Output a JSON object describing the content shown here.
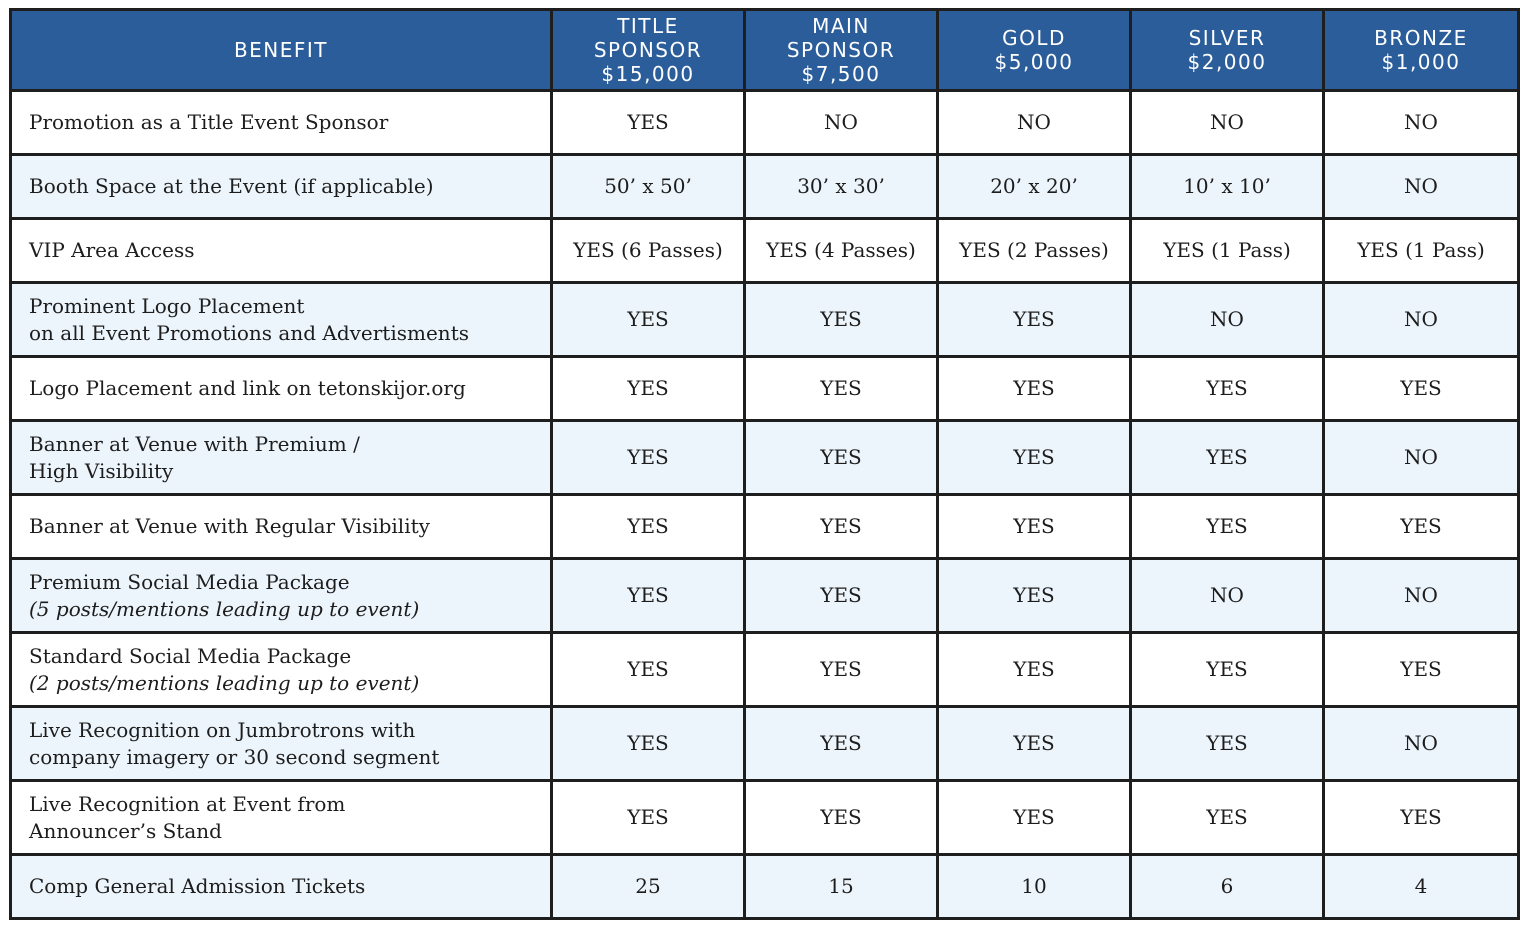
{
  "header": {
    "benefit_label": "BENEFIT",
    "tiers": [
      {
        "lines": [
          "TITLE",
          "SPONSOR",
          "$15,000"
        ]
      },
      {
        "lines": [
          "MAIN",
          "SPONSOR",
          "$7,500"
        ]
      },
      {
        "lines": [
          "GOLD",
          "$5,000"
        ]
      },
      {
        "lines": [
          "SILVER",
          "$2,000"
        ]
      },
      {
        "lines": [
          "BRONZE",
          "$1,000"
        ]
      }
    ]
  },
  "rows": [
    {
      "benefit": [
        "Promotion as a Title Event Sponsor"
      ],
      "values": [
        "YES",
        "NO",
        "NO",
        "NO",
        "NO"
      ]
    },
    {
      "benefit": [
        "Booth Space at the Event (if applicable)"
      ],
      "values": [
        "50’ x 50’",
        "30’ x 30’",
        "20’ x 20’",
        "10’ x 10’",
        "NO"
      ]
    },
    {
      "benefit": [
        "VIP Area Access"
      ],
      "values": [
        "YES (6 Passes)",
        "YES (4 Passes)",
        "YES (2 Passes)",
        "YES (1 Pass)",
        "YES (1 Pass)"
      ]
    },
    {
      "benefit": [
        "Prominent Logo Placement",
        "on all Event Promotions and Advertisments"
      ],
      "values": [
        "YES",
        "YES",
        "YES",
        "NO",
        "NO"
      ]
    },
    {
      "benefit": [
        "Logo Placement and link on tetonskijor.org"
      ],
      "values": [
        "YES",
        "YES",
        "YES",
        "YES",
        "YES"
      ]
    },
    {
      "benefit": [
        "Banner at Venue with Premium /",
        "High Visibility"
      ],
      "values": [
        "YES",
        "YES",
        "YES",
        "YES",
        "NO"
      ]
    },
    {
      "benefit": [
        "Banner at Venue with Regular Visibility"
      ],
      "values": [
        "YES",
        "YES",
        "YES",
        "YES",
        "YES"
      ]
    },
    {
      "benefit": [
        "Premium Social Media Package",
        "(5 posts/mentions leading up to event)"
      ],
      "values": [
        "YES",
        "YES",
        "YES",
        "NO",
        "NO"
      ]
    },
    {
      "benefit": [
        "Standard Social Media Package",
        "(2 posts/mentions leading up to event)"
      ],
      "values": [
        "YES",
        "YES",
        "YES",
        "YES",
        "YES"
      ]
    },
    {
      "benefit": [
        "Live Recognition on Jumbrotrons with",
        "company imagery or  30 second segment"
      ],
      "values": [
        "YES",
        "YES",
        "YES",
        "YES",
        "NO"
      ]
    },
    {
      "benefit": [
        "Live Recognition at Event from",
        "Announcer’s Stand"
      ],
      "values": [
        "YES",
        "YES",
        "YES",
        "YES",
        "YES"
      ]
    },
    {
      "benefit": [
        "Comp General Admission Tickets"
      ],
      "values": [
        "25",
        "15",
        "10",
        "6",
        "4"
      ]
    }
  ]
}
